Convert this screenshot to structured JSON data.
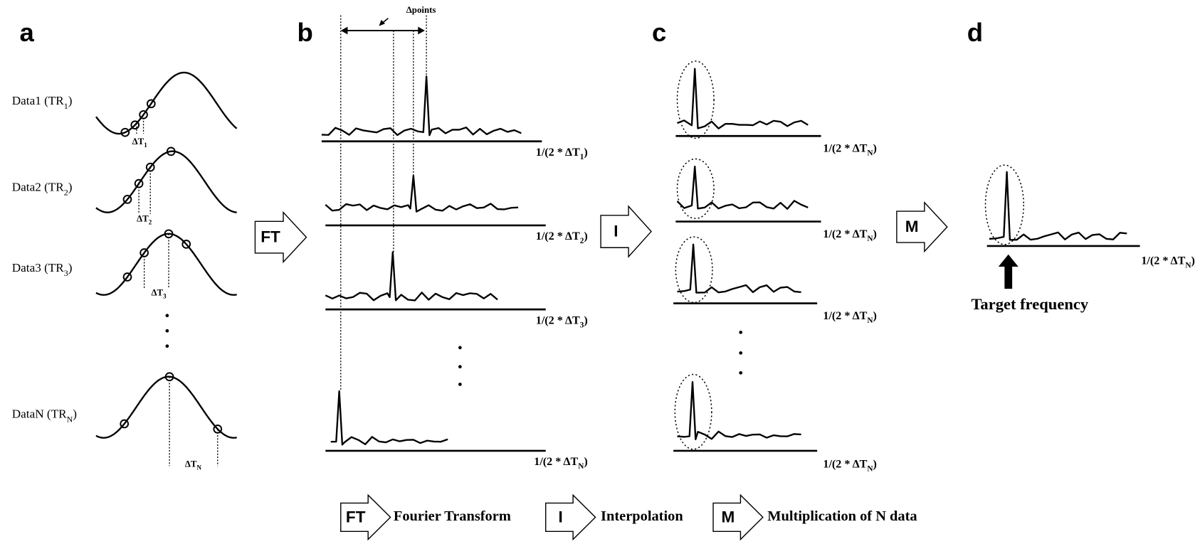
{
  "panels": [
    "a",
    "b",
    "c",
    "d"
  ],
  "panel_a": {
    "data_labels": [
      {
        "main": "Data1 (TR",
        "sub": "1",
        "tail": ")"
      },
      {
        "main": "Data2 (TR",
        "sub": "2",
        "tail": ")"
      },
      {
        "main": "Data3 (TR",
        "sub": "3",
        "tail": ")"
      },
      {
        "main": "DataN (TR",
        "sub": "N",
        "tail": ")"
      }
    ],
    "delta_labels": [
      {
        "main": "ΔT",
        "sub": "1"
      },
      {
        "main": "ΔT",
        "sub": "2"
      },
      {
        "main": "ΔT",
        "sub": "3"
      },
      {
        "main": "ΔT",
        "sub": "N"
      }
    ]
  },
  "panel_b": {
    "delta_points": "Δpoints",
    "axis_labels": [
      {
        "main": "1/(2 * ΔT",
        "sub": "1",
        "tail": ")"
      },
      {
        "main": "1/(2 * ΔT",
        "sub": "2",
        "tail": ")"
      },
      {
        "main": "1/(2 * ΔT",
        "sub": "3",
        "tail": ")"
      },
      {
        "main": "1/(2 * ΔT",
        "sub": "N",
        "tail": ")"
      }
    ]
  },
  "panel_c": {
    "axis_labels": [
      {
        "main": "1/(2 * ΔT",
        "sub": "N",
        "tail": ")"
      },
      {
        "main": "1/(2 * ΔT",
        "sub": "N",
        "tail": ")"
      },
      {
        "main": "1/(2 * ΔT",
        "sub": "N",
        "tail": ")"
      },
      {
        "main": "1/(2 * ΔT",
        "sub": "N",
        "tail": ")"
      }
    ]
  },
  "panel_d": {
    "axis_label": {
      "main": "1/(2 * ΔT",
      "sub": "N",
      "tail": ")"
    },
    "target": "Target frequency"
  },
  "arrows": [
    "FT",
    "I",
    "M"
  ],
  "legend": [
    {
      "symbol": "FT",
      "text": "Fourier Transform"
    },
    {
      "symbol": "I",
      "text": "Interpolation"
    },
    {
      "symbol": "M",
      "text": "Multiplication of N data"
    }
  ]
}
